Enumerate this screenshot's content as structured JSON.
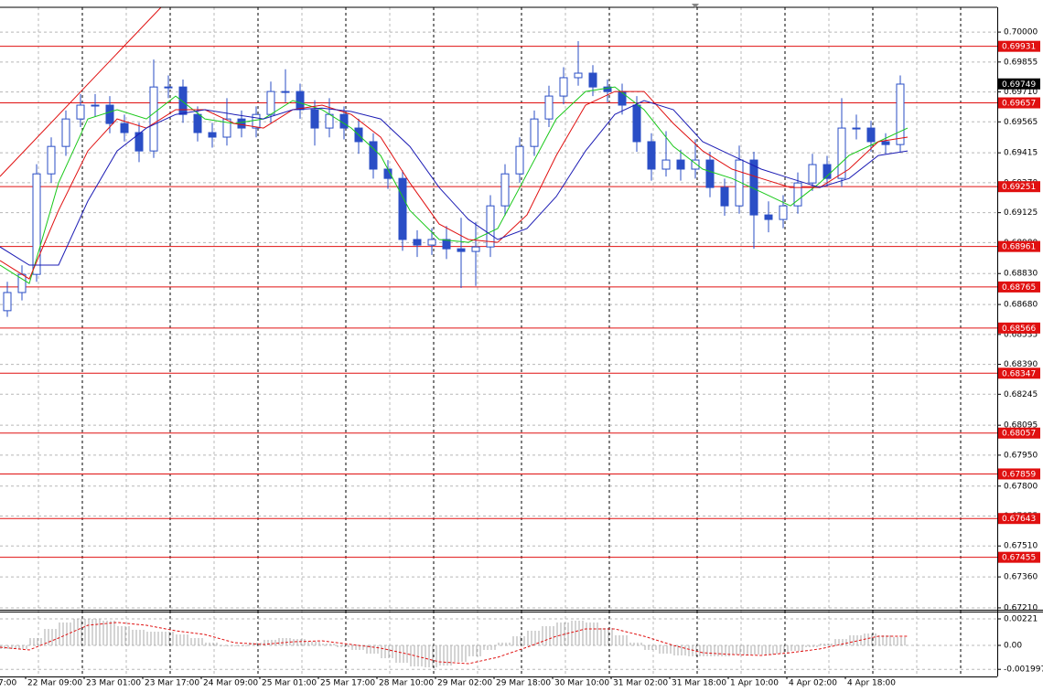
{
  "chart_data": {
    "type": "candlestick",
    "color": "#2a4ec6",
    "x": [
      2,
      6,
      10,
      14,
      18,
      22,
      26,
      30,
      34,
      38,
      42,
      46,
      50,
      54,
      58,
      62,
      66,
      70,
      74,
      78,
      82,
      86,
      90,
      94,
      98,
      102,
      106,
      110,
      114,
      118,
      122,
      126,
      130,
      134,
      138,
      142,
      146,
      150,
      154,
      158,
      162,
      166,
      170,
      174,
      178,
      182,
      186,
      190,
      194,
      198,
      202,
      206,
      210,
      214,
      218,
      222,
      226,
      230,
      234,
      238,
      242,
      246
    ],
    "candles": [
      [
        0.6865,
        0.6879,
        0.6862,
        0.68738
      ],
      [
        0.68738,
        0.6887,
        0.687,
        0.68826
      ],
      [
        0.68826,
        0.6936,
        0.6879,
        0.69313
      ],
      [
        0.69313,
        0.6949,
        0.6927,
        0.69446
      ],
      [
        0.69446,
        0.6962,
        0.694,
        0.69579
      ],
      [
        0.69579,
        0.697,
        0.6954,
        0.69646
      ],
      [
        0.69646,
        0.697,
        0.6959,
        0.69646
      ],
      [
        0.69646,
        0.6969,
        0.6951,
        0.69557
      ],
      [
        0.69557,
        0.696,
        0.6947,
        0.69513
      ],
      [
        0.69513,
        0.6956,
        0.6937,
        0.69424
      ],
      [
        0.69424,
        0.69867,
        0.6939,
        0.69734
      ],
      [
        0.69734,
        0.6979,
        0.6968,
        0.69734
      ],
      [
        0.69734,
        0.6977,
        0.6956,
        0.69601
      ],
      [
        0.69601,
        0.6964,
        0.6947,
        0.69513
      ],
      [
        0.69513,
        0.6956,
        0.6944,
        0.69491
      ],
      [
        0.69491,
        0.6968,
        0.6945,
        0.69579
      ],
      [
        0.69579,
        0.6962,
        0.6949,
        0.69535
      ],
      [
        0.69535,
        0.6964,
        0.6949,
        0.69601
      ],
      [
        0.69601,
        0.6976,
        0.6956,
        0.69712
      ],
      [
        0.69712,
        0.6982,
        0.6966,
        0.69712
      ],
      [
        0.69712,
        0.6975,
        0.6958,
        0.69624
      ],
      [
        0.69624,
        0.6967,
        0.6945,
        0.69535
      ],
      [
        0.69535,
        0.6968,
        0.6949,
        0.69601
      ],
      [
        0.69601,
        0.6964,
        0.6948,
        0.69535
      ],
      [
        0.69535,
        0.6958,
        0.6941,
        0.69469
      ],
      [
        0.69469,
        0.6951,
        0.6929,
        0.69336
      ],
      [
        0.69336,
        0.6938,
        0.6924,
        0.69291
      ],
      [
        0.69291,
        0.6933,
        0.6894,
        0.68995
      ],
      [
        0.68995,
        0.6904,
        0.6891,
        0.68968
      ],
      [
        0.68968,
        0.6905,
        0.6892,
        0.68995
      ],
      [
        0.68995,
        0.6906,
        0.689,
        0.6895
      ],
      [
        0.6895,
        0.691,
        0.6876,
        0.68937
      ],
      [
        0.68937,
        0.6908,
        0.6877,
        0.68959
      ],
      [
        0.68959,
        0.6921,
        0.6891,
        0.69158
      ],
      [
        0.69158,
        0.6936,
        0.6911,
        0.69313
      ],
      [
        0.69313,
        0.6949,
        0.6927,
        0.69446
      ],
      [
        0.69446,
        0.6962,
        0.694,
        0.69579
      ],
      [
        0.69579,
        0.6974,
        0.6954,
        0.6969
      ],
      [
        0.6969,
        0.6983,
        0.6965,
        0.69779
      ],
      [
        0.69779,
        0.69956,
        0.6974,
        0.69801
      ],
      [
        0.69801,
        0.6984,
        0.6969,
        0.69734
      ],
      [
        0.69734,
        0.6977,
        0.6966,
        0.69712
      ],
      [
        0.69712,
        0.6975,
        0.696,
        0.69646
      ],
      [
        0.69646,
        0.6969,
        0.6942,
        0.69469
      ],
      [
        0.69469,
        0.6951,
        0.6928,
        0.69336
      ],
      [
        0.69336,
        0.6952,
        0.693,
        0.6938
      ],
      [
        0.6938,
        0.6943,
        0.6928,
        0.69336
      ],
      [
        0.69336,
        0.6948,
        0.6929,
        0.6938
      ],
      [
        0.6938,
        0.6942,
        0.692,
        0.69247
      ],
      [
        0.69247,
        0.6929,
        0.6911,
        0.69158
      ],
      [
        0.69158,
        0.6945,
        0.6912,
        0.6938
      ],
      [
        0.6938,
        0.6942,
        0.6895,
        0.69114
      ],
      [
        0.69114,
        0.6918,
        0.6903,
        0.69092
      ],
      [
        0.69092,
        0.6921,
        0.6905,
        0.69158
      ],
      [
        0.69158,
        0.6932,
        0.6912,
        0.69269
      ],
      [
        0.69269,
        0.6941,
        0.6923,
        0.69358
      ],
      [
        0.69358,
        0.694,
        0.6925,
        0.69291
      ],
      [
        0.69291,
        0.6968,
        0.6925,
        0.69535
      ],
      [
        0.69535,
        0.696,
        0.6948,
        0.69535
      ],
      [
        0.69535,
        0.6957,
        0.6942,
        0.69469
      ],
      [
        0.69469,
        0.6951,
        0.6941,
        0.69455
      ],
      [
        0.69455,
        0.6979,
        0.6942,
        0.69748
      ]
    ],
    "ma_x": [
      0,
      8,
      16,
      24,
      32,
      40,
      48,
      56,
      64,
      72,
      80,
      88,
      96,
      104,
      112,
      120,
      128,
      136,
      144,
      152,
      160,
      168,
      176,
      184,
      192,
      200,
      208,
      216,
      224,
      232,
      240,
      248
    ],
    "moving_averages": [
      {
        "color": "#19c819",
        "values": [
          0.68871,
          0.68782,
          0.69269,
          0.69579,
          0.69624,
          0.69579,
          0.6969,
          0.69579,
          0.69557,
          0.69579,
          0.69668,
          0.69624,
          0.69535,
          0.69402,
          0.69136,
          0.68995,
          0.68981,
          0.69048,
          0.69313,
          0.69579,
          0.69712,
          0.69734,
          0.69624,
          0.69446,
          0.69336,
          0.69291,
          0.69225,
          0.69158,
          0.69269,
          0.69402,
          0.69469,
          0.69535
        ]
      },
      {
        "color": "#e01010",
        "values": [
          0.68893,
          0.68804,
          0.69136,
          0.69424,
          0.69579,
          0.69535,
          0.69624,
          0.69624,
          0.69557,
          0.69535,
          0.69624,
          0.69646,
          0.69601,
          0.69491,
          0.69269,
          0.6907,
          0.68995,
          0.68981,
          0.69114,
          0.69402,
          0.69646,
          0.69712,
          0.69712,
          0.69557,
          0.69424,
          0.69336,
          0.69291,
          0.69247,
          0.69247,
          0.69336,
          0.69469,
          0.69491
        ]
      },
      {
        "color": "#1c1cb4",
        "values": [
          0.68959,
          0.68871,
          0.68871,
          0.69181,
          0.69424,
          0.69535,
          0.69601,
          0.69624,
          0.69601,
          0.69579,
          0.69624,
          0.69632,
          0.69615,
          0.69579,
          0.69446,
          0.69247,
          0.69092,
          0.68995,
          0.69048,
          0.69203,
          0.69424,
          0.69601,
          0.69668,
          0.69624,
          0.69469,
          0.69402,
          0.69336,
          0.69291,
          0.69247,
          0.69291,
          0.69402,
          0.69424
        ]
      }
    ],
    "levels": {
      "color": "#e01010",
      "values": [
        0.69931,
        0.69657,
        0.69251,
        0.68961,
        0.68765,
        0.68566,
        0.68347,
        0.68057,
        0.67859,
        0.67643,
        0.67455
      ]
    },
    "current_price": 0.69749,
    "xlim": [
      0,
      272
    ],
    "xticks": [
      {
        "value": -1,
        "label": "7:00"
      },
      {
        "value": 7,
        "label": "22 Mar 09:00"
      },
      {
        "value": 23,
        "label": "23 Mar 01:00"
      },
      {
        "value": 39,
        "label": "23 Mar 17:00"
      },
      {
        "value": 55,
        "label": "24 Mar 09:00"
      },
      {
        "value": 71,
        "label": "25 Mar 01:00"
      },
      {
        "value": 87,
        "label": "25 Mar 17:00"
      },
      {
        "value": 103,
        "label": "28 Mar 10:00"
      },
      {
        "value": 119,
        "label": "29 Mar 02:00"
      },
      {
        "value": 135,
        "label": "29 Mar 18:00"
      },
      {
        "value": 151,
        "label": "30 Mar 10:00"
      },
      {
        "value": 167,
        "label": "31 Mar 02:00"
      },
      {
        "value": 183,
        "label": "31 Mar 18:00"
      },
      {
        "value": 199,
        "label": "1 Apr 10:00"
      },
      {
        "value": 215,
        "label": "4 Apr 02:00"
      },
      {
        "value": 231,
        "label": "4 Apr 18:00"
      }
    ],
    "ylim": [
      0.67201,
      0.7012
    ],
    "yticks": [
      {
        "value": 0.7,
        "label": "0.70000"
      },
      0.69855,
      {
        "value": 0.6971,
        "label": "0.69710"
      },
      0.69565,
      0.69415,
      {
        "value": 0.6927,
        "label": "0.69270"
      },
      0.69125,
      {
        "value": 0.6898,
        "label": "0.68980"
      },
      {
        "value": 0.6883,
        "label": "0.68830"
      },
      {
        "value": 0.6868,
        "label": "0.68680"
      },
      0.68535,
      {
        "value": 0.6839,
        "label": "0.68390"
      },
      0.68245,
      0.68095,
      {
        "value": 0.6795,
        "label": "0.67950"
      },
      {
        "value": 0.678,
        "label": "0.67800"
      },
      0.67655,
      {
        "value": 0.6751,
        "label": "0.67510"
      },
      {
        "value": 0.6736,
        "label": "0.67360"
      },
      {
        "value": 0.6721,
        "label": "0.67210"
      }
    ],
    "grid": true,
    "indicator": {
      "type": "macd",
      "histogram_color": "#a0a0a0",
      "signal_color": "#e01010",
      "histogram": [
        -0.0003,
        -0.0003,
        0.00061,
        0.00137,
        0.00191,
        0.00221,
        0.00221,
        0.00206,
        0.0016,
        0.0013,
        0.00114,
        0.00114,
        0.00091,
        0.00061,
        0.00023,
        -8e-05,
        -8e-05,
        0.00023,
        0.00046,
        0.00061,
        0.00053,
        0.0003,
        0.00015,
        -0.00015,
        -0.00038,
        -0.00069,
        -0.00107,
        -0.00145,
        -0.00175,
        -0.00183,
        -0.00168,
        -0.00137,
        -0.00091,
        -0.00038,
        0.00023,
        0.00076,
        0.00122,
        0.0016,
        0.00191,
        0.00206,
        0.00191,
        0.00145,
        0.00084,
        0.00023,
        -0.00038,
        -0.00069,
        -0.00084,
        -0.00091,
        -0.00091,
        -0.00091,
        -0.00076,
        -0.00076,
        -0.00076,
        -0.00069,
        -0.00046,
        -0.00015,
        0.00015,
        0.00053,
        0.00084,
        0.00099,
        0.00084,
        0.00069
      ],
      "signal": [
        -0.00015,
        -0.00038,
        0.00061,
        0.00168,
        0.00191,
        0.00168,
        0.00122,
        0.00091,
        0.00023,
        8e-05,
        0.0003,
        0.00038,
        8e-05,
        -0.00023,
        -0.00076,
        -0.00137,
        -0.00152,
        -0.00099,
        -0.00015,
        0.00076,
        0.00137,
        0.00137,
        0.00076,
        0,
        -0.00061,
        -0.00076,
        -0.00084,
        -0.00061,
        -0.0003,
        0.00023,
        0.00076,
        0.00076
      ],
      "ylim": [
        -0.00259,
        0.00282
      ],
      "yticks": [
        0.00221,
        {
          "value": 0,
          "label": "0.00"
        },
        -0.001997
      ]
    }
  }
}
